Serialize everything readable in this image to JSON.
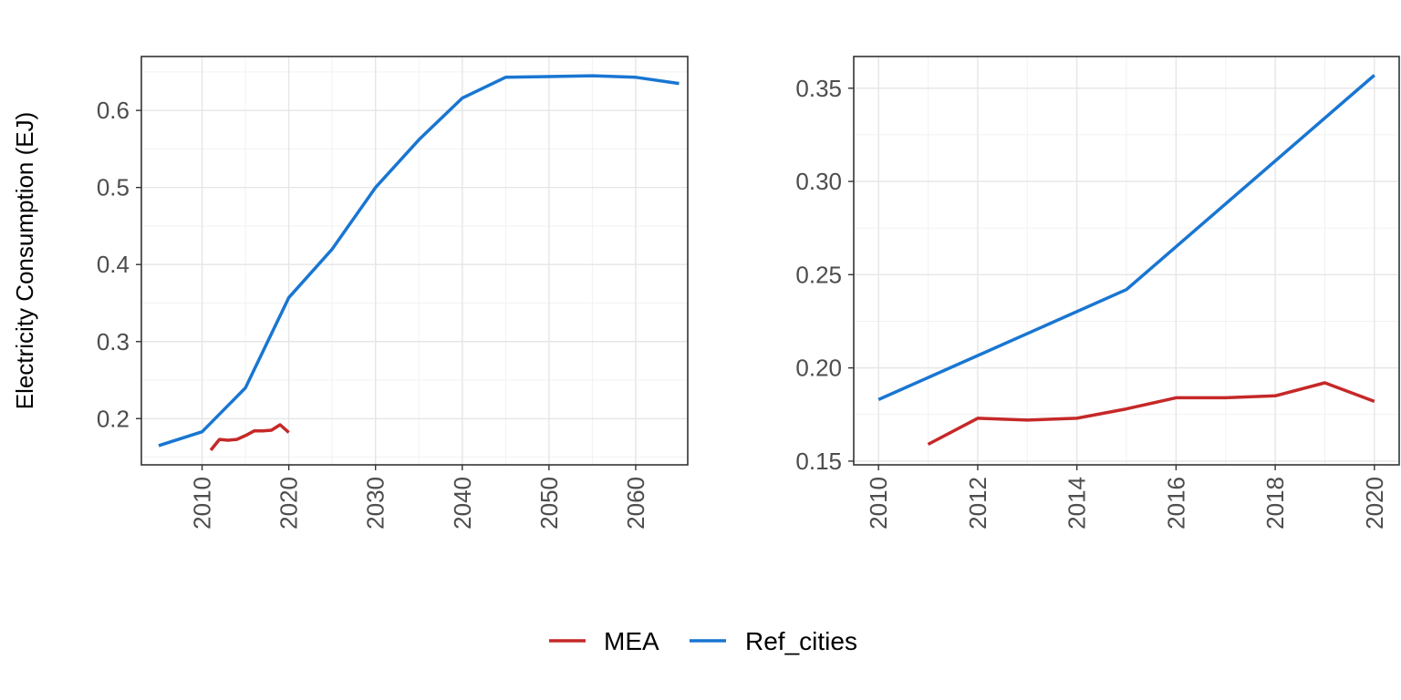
{
  "colors": {
    "MEA": "#C62828",
    "Ref_cities": "#1976D2"
  },
  "legend": {
    "items": [
      {
        "label": "MEA",
        "series": "MEA"
      },
      {
        "label": "Ref_cities",
        "series": "Ref_cities"
      }
    ],
    "position": "bottom"
  },
  "chart_data": [
    {
      "type": "line",
      "title": "",
      "xlabel": "",
      "ylabel": "Electricity Consumption (EJ)",
      "xlim": [
        2003,
        2066
      ],
      "ylim": [
        0.14,
        0.67
      ],
      "xticks": [
        2010,
        2020,
        2030,
        2040,
        2050,
        2060
      ],
      "yticks": [
        0.2,
        0.3,
        0.4,
        0.5,
        0.6
      ],
      "ytick_labels": [
        "0.2",
        "0.3",
        "0.4",
        "0.5",
        "0.6"
      ],
      "grid": true,
      "series": [
        {
          "name": "MEA",
          "x": [
            2011,
            2012,
            2013,
            2014,
            2015,
            2016,
            2017,
            2018,
            2019,
            2020
          ],
          "y": [
            0.159,
            0.173,
            0.172,
            0.173,
            0.178,
            0.184,
            0.184,
            0.185,
            0.192,
            0.182
          ]
        },
        {
          "name": "Ref_cities",
          "x": [
            2005,
            2010,
            2015,
            2020,
            2025,
            2030,
            2035,
            2040,
            2045,
            2050,
            2055,
            2060,
            2065
          ],
          "y": [
            0.165,
            0.183,
            0.24,
            0.357,
            0.42,
            0.5,
            0.562,
            0.616,
            0.643,
            0.644,
            0.645,
            0.643,
            0.635
          ]
        }
      ]
    },
    {
      "type": "line",
      "title": "",
      "xlabel": "",
      "ylabel": "",
      "xlim": [
        2009.5,
        2020.5
      ],
      "ylim": [
        0.148,
        0.367
      ],
      "xticks": [
        2010,
        2012,
        2014,
        2016,
        2018,
        2020
      ],
      "yticks": [
        0.15,
        0.2,
        0.25,
        0.3,
        0.35
      ],
      "ytick_labels": [
        "0.15",
        "0.20",
        "0.25",
        "0.30",
        "0.35"
      ],
      "grid": true,
      "series": [
        {
          "name": "MEA",
          "x": [
            2011,
            2012,
            2013,
            2014,
            2015,
            2016,
            2017,
            2018,
            2019,
            2020
          ],
          "y": [
            0.159,
            0.173,
            0.172,
            0.173,
            0.178,
            0.184,
            0.184,
            0.185,
            0.192,
            0.182
          ]
        },
        {
          "name": "Ref_cities",
          "x": [
            2010,
            2015,
            2020
          ],
          "y": [
            0.183,
            0.242,
            0.357
          ]
        }
      ]
    }
  ]
}
